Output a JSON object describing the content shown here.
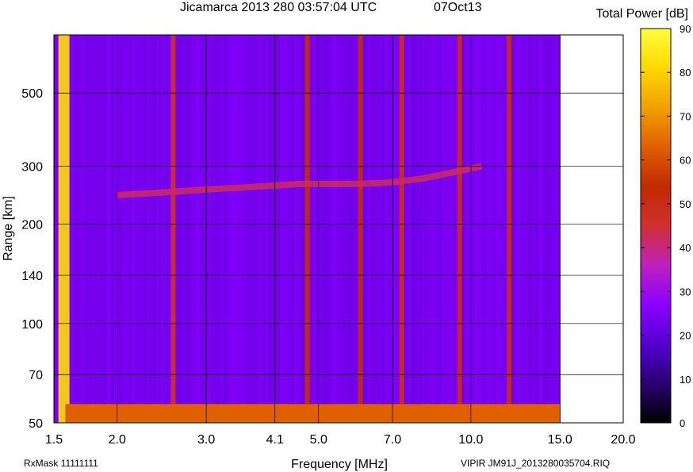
{
  "chart_data": {
    "type": "heatmap",
    "title": "Jicamarca 2013 280 03:57:04 UTC",
    "date": "07Oct13",
    "colorbar_title": "Total Power [dB]",
    "xlabel": "Frequency [MHz]",
    "ylabel": "Range [km]",
    "x_scale": "log",
    "y_scale": "log",
    "xlim": [
      1.5,
      20.0
    ],
    "ylim": [
      50,
      750
    ],
    "x_ticks": [
      1.5,
      2.0,
      3.0,
      4.1,
      5.0,
      7.0,
      10.0,
      15.0,
      20.0
    ],
    "x_tick_labels": [
      "1.5",
      "2.0",
      "3.0",
      "4.1",
      "5.0",
      "7.0",
      "10.0",
      "15.0",
      "20.0"
    ],
    "y_ticks": [
      50,
      70,
      100,
      140,
      200,
      300,
      500
    ],
    "y_tick_labels": [
      "50",
      "70",
      "100",
      "140",
      "200",
      "300",
      "500"
    ],
    "colorbar_range": [
      0,
      90
    ],
    "colorbar_ticks": [
      0,
      10,
      20,
      30,
      40,
      50,
      60,
      70,
      80,
      90
    ],
    "colorbar_tick_labels": [
      "0",
      "10",
      "20",
      "30",
      "40",
      "50",
      "60",
      "70",
      "80",
      "90"
    ],
    "grid": true,
    "colormap": [
      "#000000",
      "#2a0070",
      "#5500d0",
      "#8a00ff",
      "#c020c0",
      "#d03030",
      "#c02a00",
      "#e06000",
      "#f0a000",
      "#ffd800",
      "#ffff40"
    ],
    "data_extent_mhz": [
      1.5,
      15.0
    ],
    "background_level_db": 24,
    "ground_clutter": {
      "range_km": [
        50,
        57
      ],
      "level_db": 63
    },
    "trace": {
      "description": "F-region virtual height trace",
      "freq_mhz": [
        2.0,
        2.5,
        3.0,
        3.5,
        4.1,
        4.6,
        5.0,
        6.0,
        7.0,
        8.0,
        9.0,
        10.0,
        10.5
      ],
      "range_km": [
        245,
        250,
        255,
        258,
        262,
        265,
        265,
        265,
        268,
        275,
        285,
        295,
        300
      ],
      "level_db": 42
    },
    "interference_bands": [
      {
        "freq_mhz": 1.57,
        "level_db": 82
      },
      {
        "freq_mhz": 2.58,
        "level_db": 45
      },
      {
        "freq_mhz": 4.75,
        "level_db": 55
      },
      {
        "freq_mhz": 6.05,
        "level_db": 52
      },
      {
        "freq_mhz": 7.3,
        "level_db": 48
      },
      {
        "freq_mhz": 9.5,
        "level_db": 50
      },
      {
        "freq_mhz": 11.9,
        "level_db": 50
      }
    ]
  },
  "footer": {
    "left": "RxMask 11111111",
    "right": "VIPIR  JM91J_2013280035704.RIQ"
  }
}
